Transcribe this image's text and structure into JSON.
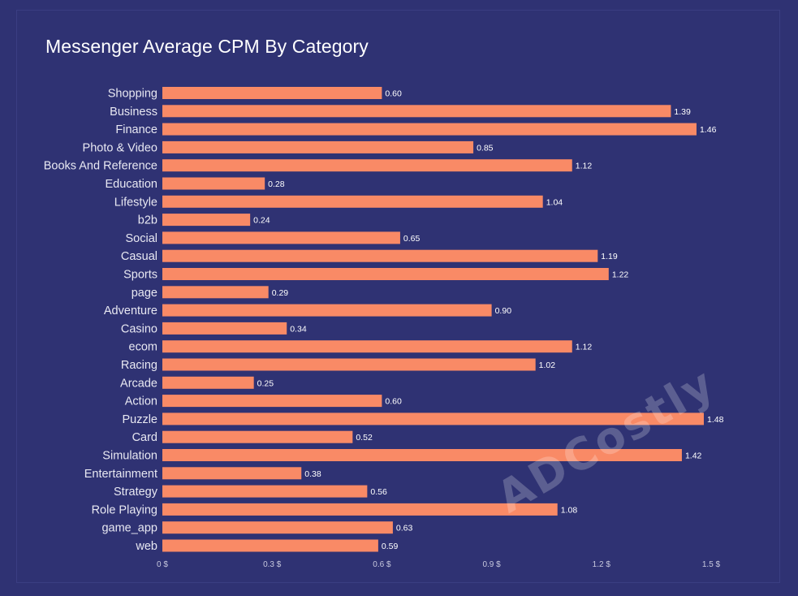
{
  "chart_data": {
    "type": "bar",
    "orientation": "horizontal",
    "title": "Messenger Average CPM By Category",
    "categories": [
      "Shopping",
      "Business",
      "Finance",
      "Photo & Video",
      "Books And Reference",
      "Education",
      "Lifestyle",
      "b2b",
      "Social",
      "Casual",
      "Sports",
      "page",
      "Adventure",
      "Casino",
      "ecom",
      "Racing",
      "Arcade",
      "Action",
      "Puzzle",
      "Card",
      "Simulation",
      "Entertainment",
      "Strategy",
      "Role Playing",
      "game_app",
      "web"
    ],
    "values": [
      0.6,
      1.39,
      1.46,
      0.85,
      1.12,
      0.28,
      1.04,
      0.24,
      0.65,
      1.19,
      1.22,
      0.29,
      0.9,
      0.34,
      1.12,
      1.02,
      0.25,
      0.6,
      1.48,
      0.52,
      1.42,
      0.38,
      0.56,
      1.08,
      0.63,
      0.59
    ],
    "value_labels": [
      "0.60",
      "1.39",
      "1.46",
      "0.85",
      "1.12",
      "0.28",
      "1.04",
      "0.24",
      "0.65",
      "1.19",
      "1.22",
      "0.29",
      "0.90",
      "0.34",
      "1.12",
      "1.02",
      "0.25",
      "0.60",
      "1.48",
      "0.52",
      "1.42",
      "0.38",
      "0.56",
      "1.08",
      "0.63",
      "0.59"
    ],
    "xlim": [
      0,
      1.5
    ],
    "x_ticks": [
      0,
      0.3,
      0.6,
      0.9,
      1.2,
      1.5
    ],
    "x_tick_labels": [
      "0 $",
      "0.3 $",
      "0.6 $",
      "0.9 $",
      "1.2 $",
      "1.5 $"
    ],
    "xlabel": "",
    "ylabel": "",
    "grid": false,
    "legend": "none",
    "bar_color": "#f98a66",
    "background_color": "#2f3273"
  },
  "watermark": "ADCostly"
}
